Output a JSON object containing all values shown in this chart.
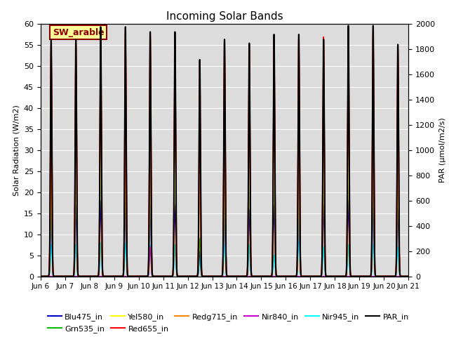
{
  "title": "Incoming Solar Bands",
  "ylabel_left": "Solar Radiation (W/m2)",
  "ylabel_right": "PAR (μmol/m2/s)",
  "ylim_left": [
    0,
    60
  ],
  "ylim_right": [
    0,
    2000
  ],
  "xtick_labels": [
    "Jun 6",
    "Jun 7",
    "Jun 8",
    "Jun 9",
    "Jun 10",
    "Jun 11",
    "Jun 12",
    "Jun 13",
    "Jun 14",
    "Jun 15",
    "Jun 16",
    "Jun 17",
    "Jun 18",
    "Jun 19",
    "Jun 20",
    "Jun 21"
  ],
  "yticks_left": [
    0,
    5,
    10,
    15,
    20,
    25,
    30,
    35,
    40,
    45,
    50,
    55,
    60
  ],
  "yticks_right": [
    0,
    200,
    400,
    600,
    800,
    1000,
    1200,
    1400,
    1600,
    1800,
    2000
  ],
  "annotation_text": "SW_arable",
  "annotation_color": "#8B0000",
  "annotation_bg": "#FFFF99",
  "annotation_border": "#8B0000",
  "background_color": "#DCDCDC",
  "series_colors": {
    "Blu475_in": "#0000CC",
    "Grn535_in": "#00BB00",
    "Yel580_in": "#FFFF00",
    "Red655_in": "#FF0000",
    "Redg715_in": "#FF8800",
    "Nir840_in": "#CC00CC",
    "Nir945_in": "#00FFFF",
    "PAR_in": "#000000"
  },
  "day_peaks": [
    {
      "sw": 56,
      "par": 1880,
      "blu": 17,
      "grn": 26,
      "yel": 30,
      "red": 55,
      "redg": 30,
      "nir840": 0,
      "nir945": 7.5
    },
    {
      "sw": 56,
      "par": 1880,
      "blu": 17,
      "grn": 26,
      "yel": 30,
      "red": 55,
      "redg": 30,
      "nir840": 0,
      "nir945": 7.5
    },
    {
      "sw": 59,
      "par": 1980,
      "blu": 18,
      "grn": 28,
      "yel": 35,
      "red": 58,
      "redg": 32,
      "nir840": 0,
      "nir945": 8
    },
    {
      "sw": 59,
      "par": 1980,
      "blu": 18,
      "grn": 28,
      "yel": 35,
      "red": 58,
      "redg": 32,
      "nir840": 0,
      "nir945": 8
    },
    {
      "sw": 58,
      "par": 1940,
      "blu": 17,
      "grn": 27,
      "yel": 32,
      "red": 57,
      "redg": 31,
      "nir840": 7,
      "nir945": 7.5
    },
    {
      "sw": 57,
      "par": 1940,
      "blu": 17,
      "grn": 27,
      "yel": 30,
      "red": 56,
      "redg": 30,
      "nir840": 30,
      "nir945": 7.5
    },
    {
      "sw": 51,
      "par": 1720,
      "blu": 6,
      "grn": 9,
      "yel": 26,
      "red": 42,
      "redg": 25,
      "nir840": 30,
      "nir945": 4
    },
    {
      "sw": 56,
      "par": 1880,
      "blu": 17,
      "grn": 25,
      "yel": 30,
      "red": 55,
      "redg": 29,
      "nir840": 0,
      "nir945": 7.5
    },
    {
      "sw": 55,
      "par": 1850,
      "blu": 16,
      "grn": 25,
      "yel": 31,
      "red": 54,
      "redg": 31,
      "nir840": 0,
      "nir945": 7.5
    },
    {
      "sw": 57,
      "par": 1920,
      "blu": 17,
      "grn": 25,
      "yel": 31,
      "red": 56,
      "redg": 36,
      "nir840": 0,
      "nir945": 5
    },
    {
      "sw": 57,
      "par": 1920,
      "blu": 17,
      "grn": 26,
      "yel": 30,
      "red": 56,
      "redg": 30,
      "nir840": 0,
      "nir945": 8.5
    },
    {
      "sw": 57,
      "par": 1880,
      "blu": 17,
      "grn": 26,
      "yel": 30,
      "red": 56,
      "redg": 30,
      "nir840": 0,
      "nir945": 7
    },
    {
      "sw": 59,
      "par": 1990,
      "blu": 18,
      "grn": 27,
      "yel": 32,
      "red": 58,
      "redg": 31,
      "nir840": 0,
      "nir945": 7.5
    },
    {
      "sw": 59,
      "par": 1990,
      "blu": 18,
      "grn": 27,
      "yel": 38,
      "red": 58,
      "redg": 32,
      "nir840": 0,
      "nir945": 7.5
    },
    {
      "sw": 55,
      "par": 1840,
      "blu": 16,
      "grn": 26,
      "yel": 31,
      "red": 54,
      "redg": 29,
      "nir840": 0,
      "nir945": 7
    }
  ]
}
